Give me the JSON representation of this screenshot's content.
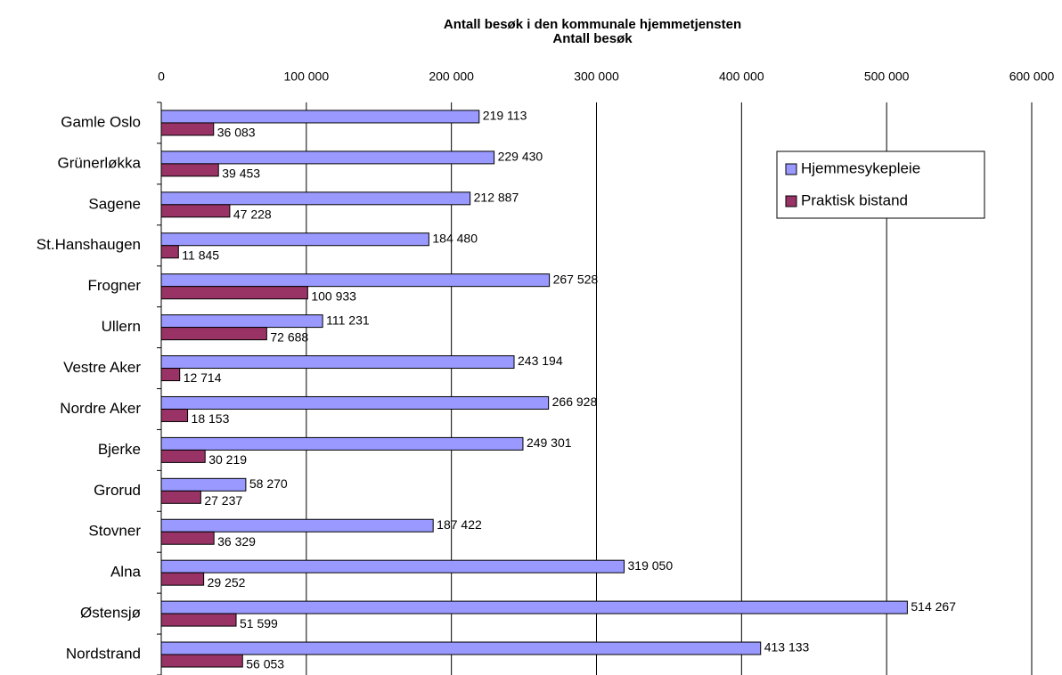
{
  "chart_data": {
    "type": "hbar",
    "title": "Antall besøk i den kommunale hjemmetjensten",
    "subtitle": "Antall besøk",
    "categories": [
      "Gamle Oslo",
      "Grünerløkka",
      "Sagene",
      "St.Hanshaugen",
      "Frogner",
      "Ullern",
      "Vestre Aker",
      "Nordre Aker",
      "Bjerke",
      "Grorud",
      "Stovner",
      "Alna",
      "Østensjø",
      "Nordstrand"
    ],
    "series": [
      {
        "name": "Hjemmesykepleie",
        "color": "#9999ff",
        "values": [
          219113,
          229430,
          212887,
          184480,
          267528,
          111231,
          243194,
          266928,
          249301,
          58270,
          187422,
          319050,
          514267,
          413133
        ],
        "value_labels": [
          "219 113",
          "229 430",
          "212 887",
          "184 480",
          "267 528",
          "111 231",
          "243 194",
          "266 928",
          "249 301",
          "58 270",
          "187 422",
          "319 050",
          "514 267",
          "413 133"
        ]
      },
      {
        "name": "Praktisk bistand",
        "color": "#993366",
        "values": [
          36083,
          39453,
          47228,
          11845,
          100933,
          72688,
          12714,
          18153,
          30219,
          27237,
          36329,
          29252,
          51599,
          56053
        ],
        "value_labels": [
          "36 083",
          "39 453",
          "47 228",
          "11 845",
          "100 933",
          "72 688",
          "12 714",
          "18 153",
          "30 219",
          "27 237",
          "36 329",
          "29 252",
          "51 599",
          "56 053"
        ]
      }
    ],
    "xlim": [
      0,
      600000
    ],
    "xticks": [
      0,
      {
        "value": 100000,
        "label": "100 000"
      },
      {
        "value": 200000,
        "label": "200 000"
      },
      {
        "value": 300000,
        "label": "300 000"
      },
      {
        "value": 400000,
        "label": "400 000"
      },
      {
        "value": 500000,
        "label": "500 000"
      },
      {
        "value": 600000,
        "label": "600 000"
      }
    ],
    "grid": true,
    "legend": "upper right"
  }
}
